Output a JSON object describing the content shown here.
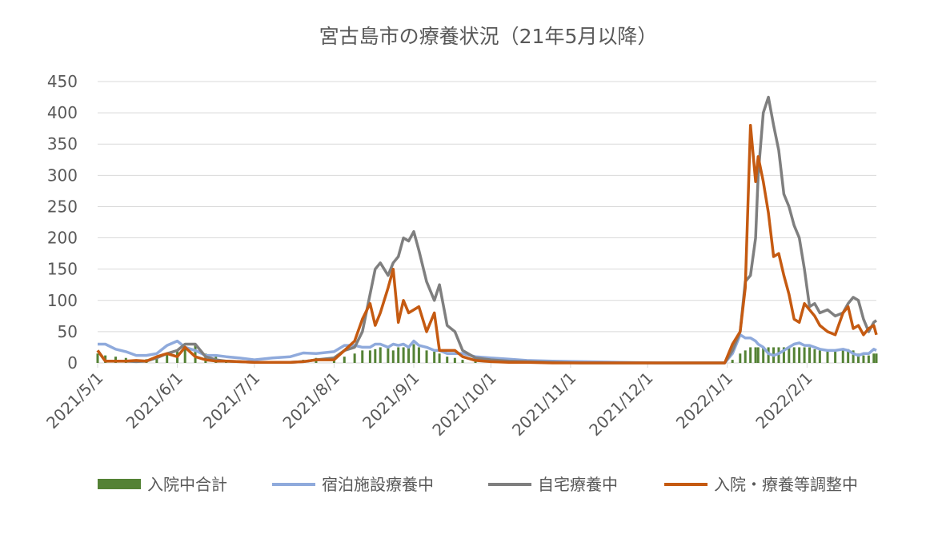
{
  "chart_data": {
    "type": "line",
    "title": "宮古島市の療養状況（21年5月以降）",
    "x": [
      "2021/5/1",
      "2021/5/4",
      "2021/5/8",
      "2021/5/12",
      "2021/5/16",
      "2021/5/20",
      "2021/5/24",
      "2021/5/28",
      "2021/6/1",
      "2021/6/4",
      "2021/6/8",
      "2021/6/12",
      "2021/6/16",
      "2021/6/20",
      "2021/6/25",
      "2021/7/1",
      "2021/7/8",
      "2021/7/15",
      "2021/7/20",
      "2021/7/25",
      "2021/8/1",
      "2021/8/5",
      "2021/8/9",
      "2021/8/12",
      "2021/8/15",
      "2021/8/17",
      "2021/8/19",
      "2021/8/22",
      "2021/8/24",
      "2021/8/26",
      "2021/8/28",
      "2021/8/30",
      "2021/9/1",
      "2021/9/3",
      "2021/9/6",
      "2021/9/9",
      "2021/9/11",
      "2021/9/14",
      "2021/9/17",
      "2021/9/20",
      "2021/9/25",
      "2021/10/1",
      "2021/10/8",
      "2021/10/15",
      "2021/10/25",
      "2021/11/5",
      "2021/11/20",
      "2021/12/5",
      "2021/12/20",
      "2021/12/31",
      "2022/1/3",
      "2022/1/6",
      "2022/1/8",
      "2022/1/10",
      "2022/1/12",
      "2022/1/13",
      "2022/1/15",
      "2022/1/17",
      "2022/1/19",
      "2022/1/21",
      "2022/1/23",
      "2022/1/25",
      "2022/1/27",
      "2022/1/29",
      "2022/1/31",
      "2022/2/2",
      "2022/2/4",
      "2022/2/6",
      "2022/2/9",
      "2022/2/12",
      "2022/2/15",
      "2022/2/17",
      "2022/2/19",
      "2022/2/21",
      "2022/2/23",
      "2022/2/25",
      "2022/2/27",
      "2022/2/28"
    ],
    "series": [
      {
        "name": "入院中合計",
        "color": "#548235",
        "style": "bar",
        "values": [
          15,
          12,
          10,
          8,
          5,
          6,
          10,
          15,
          20,
          25,
          30,
          15,
          10,
          5,
          3,
          2,
          2,
          3,
          5,
          8,
          10,
          10,
          15,
          20,
          20,
          22,
          25,
          25,
          20,
          25,
          25,
          28,
          30,
          25,
          20,
          18,
          15,
          10,
          8,
          5,
          3,
          2,
          2,
          1,
          1,
          0,
          0,
          0,
          0,
          0,
          5,
          15,
          20,
          25,
          25,
          25,
          25,
          25,
          25,
          25,
          25,
          25,
          25,
          25,
          25,
          25,
          22,
          20,
          20,
          18,
          20,
          22,
          20,
          15,
          12,
          12,
          15,
          15
        ]
      },
      {
        "name": "宿泊施設療養中",
        "color": "#8faadc",
        "style": "line",
        "values": [
          30,
          30,
          22,
          18,
          12,
          12,
          15,
          28,
          35,
          25,
          20,
          12,
          12,
          10,
          8,
          5,
          8,
          10,
          16,
          15,
          18,
          28,
          28,
          25,
          25,
          30,
          30,
          25,
          30,
          28,
          30,
          25,
          35,
          28,
          25,
          20,
          20,
          15,
          15,
          15,
          10,
          8,
          6,
          4,
          3,
          2,
          1,
          0,
          0,
          0,
          15,
          45,
          40,
          40,
          35,
          30,
          25,
          15,
          12,
          15,
          20,
          25,
          30,
          32,
          28,
          28,
          25,
          22,
          20,
          20,
          22,
          20,
          15,
          12,
          15,
          15,
          22,
          20
        ]
      },
      {
        "name": "自宅療養中",
        "color": "#7f7f7f",
        "style": "line",
        "values": [
          20,
          3,
          3,
          3,
          2,
          3,
          8,
          15,
          20,
          30,
          30,
          10,
          5,
          3,
          2,
          1,
          1,
          1,
          2,
          5,
          8,
          20,
          25,
          50,
          110,
          150,
          160,
          140,
          160,
          170,
          200,
          195,
          210,
          180,
          130,
          100,
          125,
          60,
          50,
          20,
          8,
          5,
          3,
          2,
          1,
          0,
          0,
          0,
          0,
          0,
          20,
          50,
          130,
          140,
          200,
          300,
          400,
          425,
          380,
          340,
          270,
          250,
          220,
          200,
          150,
          90,
          95,
          80,
          85,
          75,
          80,
          95,
          105,
          100,
          70,
          50,
          65,
          68
        ]
      },
      {
        "name": "入院・療養等調整中",
        "color": "#c55a11",
        "style": "line",
        "values": [
          20,
          3,
          3,
          3,
          4,
          3,
          10,
          15,
          10,
          25,
          10,
          5,
          3,
          3,
          2,
          1,
          1,
          1,
          2,
          5,
          5,
          20,
          35,
          70,
          95,
          60,
          80,
          120,
          150,
          65,
          100,
          80,
          85,
          90,
          50,
          80,
          20,
          20,
          20,
          10,
          4,
          2,
          1,
          1,
          0,
          0,
          0,
          0,
          0,
          0,
          30,
          50,
          120,
          380,
          290,
          330,
          290,
          240,
          170,
          175,
          140,
          110,
          70,
          65,
          95,
          85,
          75,
          60,
          50,
          45,
          80,
          90,
          55,
          60,
          45,
          55,
          60,
          45
        ]
      }
    ],
    "xlim": [
      "2021/5/1",
      "2022/2/28"
    ],
    "xticks": [
      "2021/5/1",
      "2021/6/1",
      "2021/7/1",
      "2021/8/1",
      "2021/9/1",
      "2021/10/1",
      "2021/11/1",
      "2021/12/1",
      "2022/1/1",
      "2022/2/1"
    ],
    "ylim": [
      0,
      450
    ],
    "yticks": [
      0,
      50,
      100,
      150,
      200,
      250,
      300,
      350,
      400,
      450
    ],
    "grid": true
  }
}
